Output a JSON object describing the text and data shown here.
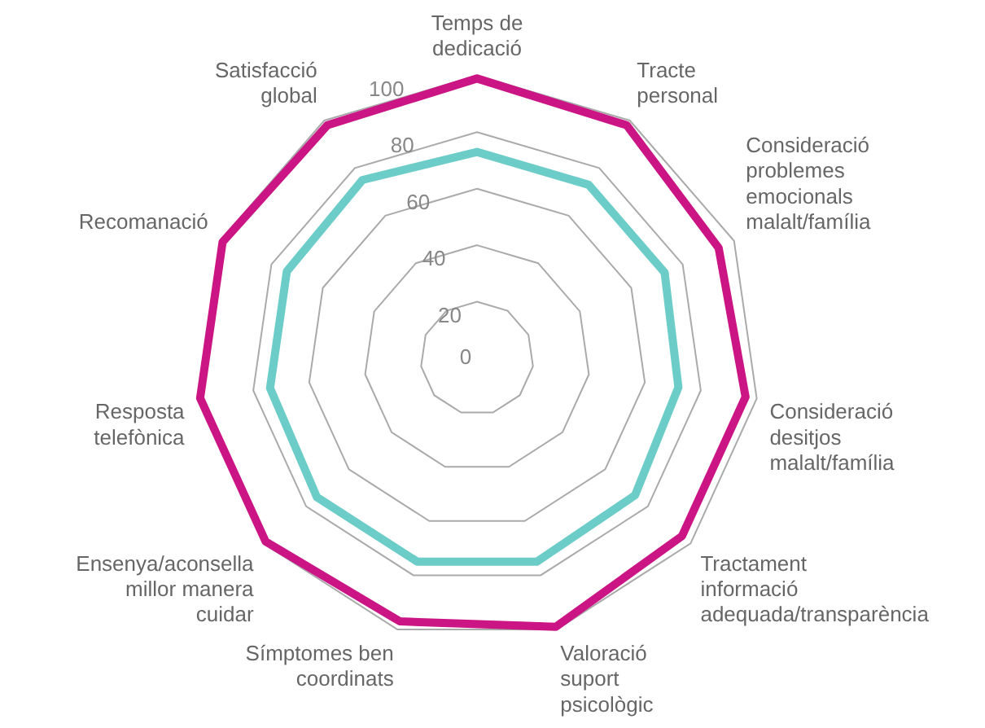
{
  "chart_data": {
    "type": "radar",
    "categories": [
      "Temps de dedicació",
      "Tracte personal",
      "Consideració problemes emocionals malalt/família",
      "Consideració desitjos malalt/família",
      "Tractament informació adequada/transparència",
      "Valoració suport psicològic",
      "Símptomes ben coordinats",
      "Ensenya/aconsella millor manera cuidar",
      "Resposta telefònica",
      "Recomanació",
      "Satisfacció global"
    ],
    "series": [
      {
        "color": "#cc1585",
        "values": [
          99,
          98,
          94,
          96,
          96,
          99,
          97,
          99,
          99,
          99,
          98
        ]
      },
      {
        "color": "#6ccdc8",
        "values": [
          73,
          73,
          73,
          72,
          74,
          75,
          75,
          75,
          74,
          74,
          75
        ]
      }
    ],
    "ylim": [
      0,
      100
    ],
    "yticks": [
      0,
      20,
      40,
      60,
      80,
      100
    ],
    "grid": true,
    "legend": false,
    "marker": "none",
    "line_style": "solid"
  }
}
